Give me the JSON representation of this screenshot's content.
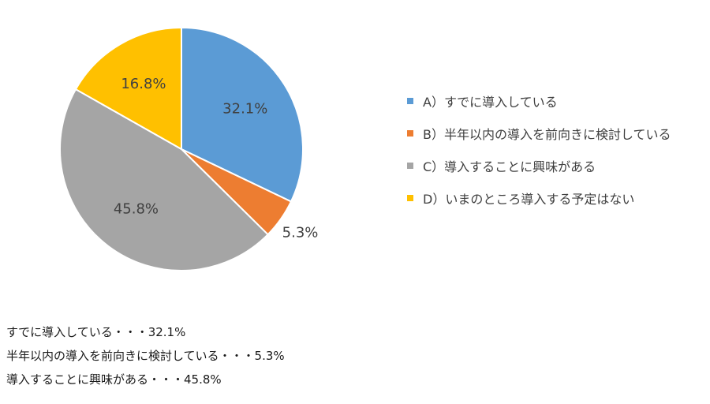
{
  "chart_data": {
    "type": "pie",
    "start_angle_deg": 0,
    "direction": "clockwise",
    "slices": [
      {
        "legend": "A）すでに導入している",
        "value": 32.1,
        "label": "32.1%",
        "color": "#5B9BD5",
        "label_color": "#404040"
      },
      {
        "legend": "B）半年以内の導入を前向きに検討している",
        "value": 5.3,
        "label": "5.3%",
        "color": "#ED7D31",
        "label_color": "#404040"
      },
      {
        "legend": "C）導入することに興味がある",
        "value": 45.8,
        "label": "45.8%",
        "color": "#A5A5A5",
        "label_color": "#404040"
      },
      {
        "legend": "D）いまのところ導入する予定はない",
        "value": 16.8,
        "label": "16.8%",
        "color": "#FFC000",
        "label_color": "#404040"
      }
    ],
    "legend_placement": "right"
  },
  "summary": {
    "lines": [
      "すでに導入している・・・32.1%",
      "半年以内の導入を前向きに検討している・・・5.3%",
      "導入することに興味がある・・・45.8%"
    ]
  }
}
